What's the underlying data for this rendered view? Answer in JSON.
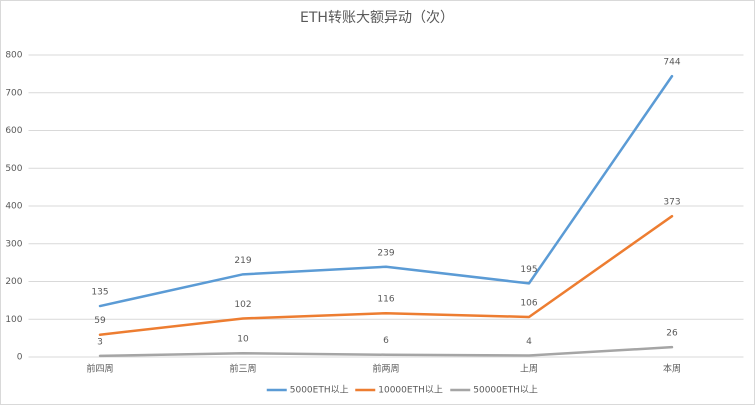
{
  "chart_data": {
    "type": "line",
    "title": "ETH转账大额异动（次）",
    "categories": [
      "前四周",
      "前三周",
      "前两周",
      "上周",
      "本周"
    ],
    "series": [
      {
        "name": "5000ETH以上",
        "color": "#5b9bd5",
        "values": [
          135,
          219,
          239,
          195,
          744
        ]
      },
      {
        "name": "10000ETH以上",
        "color": "#ed7d31",
        "values": [
          59,
          102,
          116,
          106,
          373
        ]
      },
      {
        "name": "50000ETH以上",
        "color": "#a5a5a5",
        "values": [
          3,
          10,
          6,
          4,
          26
        ]
      }
    ],
    "ylim": [
      0,
      800
    ],
    "yticks": [
      0,
      100,
      200,
      300,
      400,
      500,
      600,
      700,
      800
    ],
    "grid": true,
    "legend": "bottom"
  }
}
